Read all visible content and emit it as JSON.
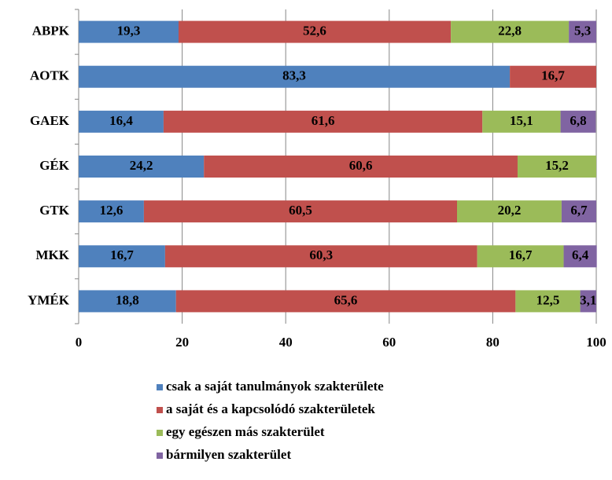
{
  "chart_data": {
    "type": "stacked-barh",
    "categories": [
      "ABPK",
      "AOTK",
      "GAEK",
      "GÉK",
      "GTK",
      "MKK",
      "YMÉK"
    ],
    "series": [
      {
        "name": "csak a saját tanulmányok szakterülete",
        "color": "#4f81bd",
        "values": [
          19.3,
          83.3,
          16.4,
          24.2,
          12.6,
          16.7,
          18.8
        ],
        "value_labels": [
          "19,3",
          "83,3",
          "16,4",
          "24,2",
          "12,6",
          "16,7",
          "18,8"
        ]
      },
      {
        "name": "a saját és a kapcsolódó szakterületek",
        "color": "#c0504d",
        "values": [
          52.6,
          16.7,
          61.6,
          60.6,
          60.5,
          60.3,
          65.6
        ],
        "value_labels": [
          "52,6",
          "16,7",
          "61,6",
          "60,6",
          "60,5",
          "60,3",
          "65,6"
        ]
      },
      {
        "name": "egy egészen más szakterület",
        "color": "#9bbb59",
        "values": [
          22.8,
          null,
          15.1,
          15.2,
          20.2,
          16.7,
          12.5
        ],
        "value_labels": [
          "22,8",
          null,
          "15,1",
          "15,2",
          "20,2",
          "16,7",
          "12,5"
        ]
      },
      {
        "name": "bármilyen szakterület",
        "color": "#8064a2",
        "values": [
          5.3,
          null,
          6.8,
          null,
          6.7,
          6.4,
          3.1
        ],
        "value_labels": [
          "5,3",
          null,
          "6,8",
          null,
          "6,7",
          "6,4",
          "3,1"
        ]
      }
    ],
    "xlim": [
      0,
      100
    ],
    "xticks": [
      0,
      20,
      40,
      60,
      80,
      100
    ],
    "grid": true,
    "legend": "bottom"
  }
}
